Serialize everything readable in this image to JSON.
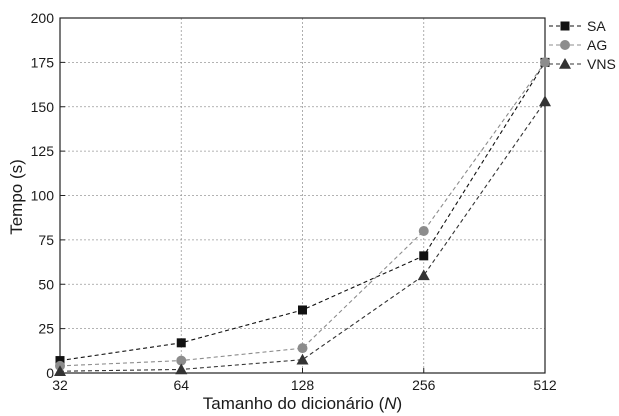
{
  "chart_data": {
    "type": "line",
    "x": [
      "32",
      "64",
      "128",
      "256",
      "512"
    ],
    "xlabel_prefix": "Tamanho do dicionário (",
    "xlabel_var": "N",
    "xlabel_suffix": ")",
    "ylabel": "Tempo (s)",
    "ylim": [
      0,
      200
    ],
    "yticks": [
      "0",
      "25",
      "50",
      "75",
      "100",
      "125",
      "150",
      "175",
      "200"
    ],
    "ytick_values": [
      0,
      25,
      50,
      75,
      100,
      125,
      150,
      175,
      200
    ],
    "grid": true,
    "legend_position": "top-right",
    "series": [
      {
        "name": "SA",
        "marker": "square",
        "color": "#111111",
        "values": [
          7,
          17,
          35.5,
          66,
          175
        ]
      },
      {
        "name": "AG",
        "marker": "circle",
        "color": "#8c8c8c",
        "values": [
          4,
          7,
          14,
          80,
          175
        ]
      },
      {
        "name": "VNS",
        "marker": "triangle",
        "color": "#333333",
        "values": [
          1,
          2,
          7.5,
          55,
          153
        ]
      }
    ]
  }
}
